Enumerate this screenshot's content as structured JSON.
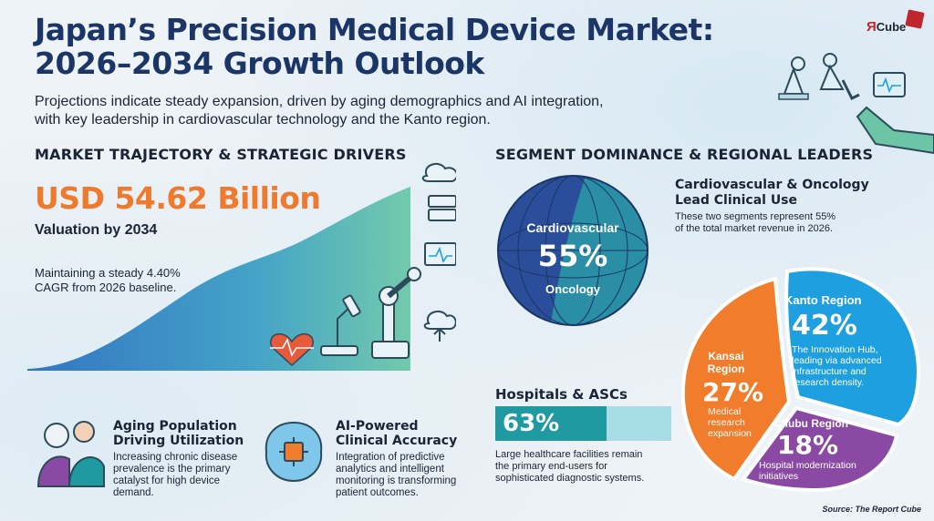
{
  "header": {
    "title_line1": "Japan’s Precision Medical Device Market:",
    "title_line2": "2026–2034 Growth Outlook",
    "subtitle_line1": "Projections indicate steady expansion, driven by aging demographics and AI integration,",
    "subtitle_line2": "with key leadership in cardiovascular technology and the Kanto region.",
    "logo_r": "Я",
    "logo_cube": "Cube"
  },
  "left": {
    "section_title": "MARKET TRAJECTORY & STRATEGIC DRIVERS",
    "valuation": "USD 54.62 Billion",
    "valuation_label": "Valuation by 2034",
    "cagr_text": "Maintaining a steady 4.40% CAGR from 2026 baseline.",
    "features": [
      {
        "title_line1": "Aging Population",
        "title_line2": "Driving Utilization",
        "text_line1": "Increasing chronic disease",
        "text_line2": "prevalence is the primary",
        "text_line3": "catalyst for high device",
        "text_line4": "demand."
      },
      {
        "title_line1": "AI-Powered",
        "title_line2": "Clinical Accuracy",
        "text_line1": "Integration of predictive",
        "text_line2": "analytics and intelligent",
        "text_line3": "monitoring is transforming",
        "text_line4": "patient outcomes."
      }
    ]
  },
  "right": {
    "section_title": "SEGMENT DOMINANCE & REGIONAL LEADERS",
    "segment_circle": {
      "top_label": "Cardiovascular",
      "value": "55%",
      "bottom_label": "Oncology",
      "share": 0.55
    },
    "clinical_head_line1": "Cardiovascular & Oncology",
    "clinical_head_line2": "Lead Clinical Use",
    "clinical_text_line1": "These two segments represent 55%",
    "clinical_text_line2": "of the total market revenue in 2026.",
    "hospitals": {
      "title": "Hospitals & ASCs",
      "value": "63%",
      "share": 0.63,
      "text_line1": "Large healthcare facilities remain",
      "text_line2": "the primary end-users for",
      "text_line3": "sophisticated diagnostic systems."
    },
    "regions": [
      {
        "name": "Kanto Region",
        "value": "42%",
        "desc_line1": "The Innovation Hub,",
        "desc_line2": "leading via advanced",
        "desc_line3": "infrastructure and",
        "desc_line4": "research density.",
        "color": "#1e9fe0"
      },
      {
        "name_line1": "Kansai",
        "name_line2": "Region",
        "value": "27%",
        "desc_line1": "Medical",
        "desc_line2": "research",
        "desc_line3": "expansion",
        "color": "#f07c2c"
      },
      {
        "name": "Chubu Region",
        "value": "18%",
        "desc_line1": "Hospital modernization",
        "desc_line2": "initiatives",
        "color": "#8a4aa3"
      }
    ]
  },
  "footer": {
    "source": "Source: The Report Cube"
  }
}
